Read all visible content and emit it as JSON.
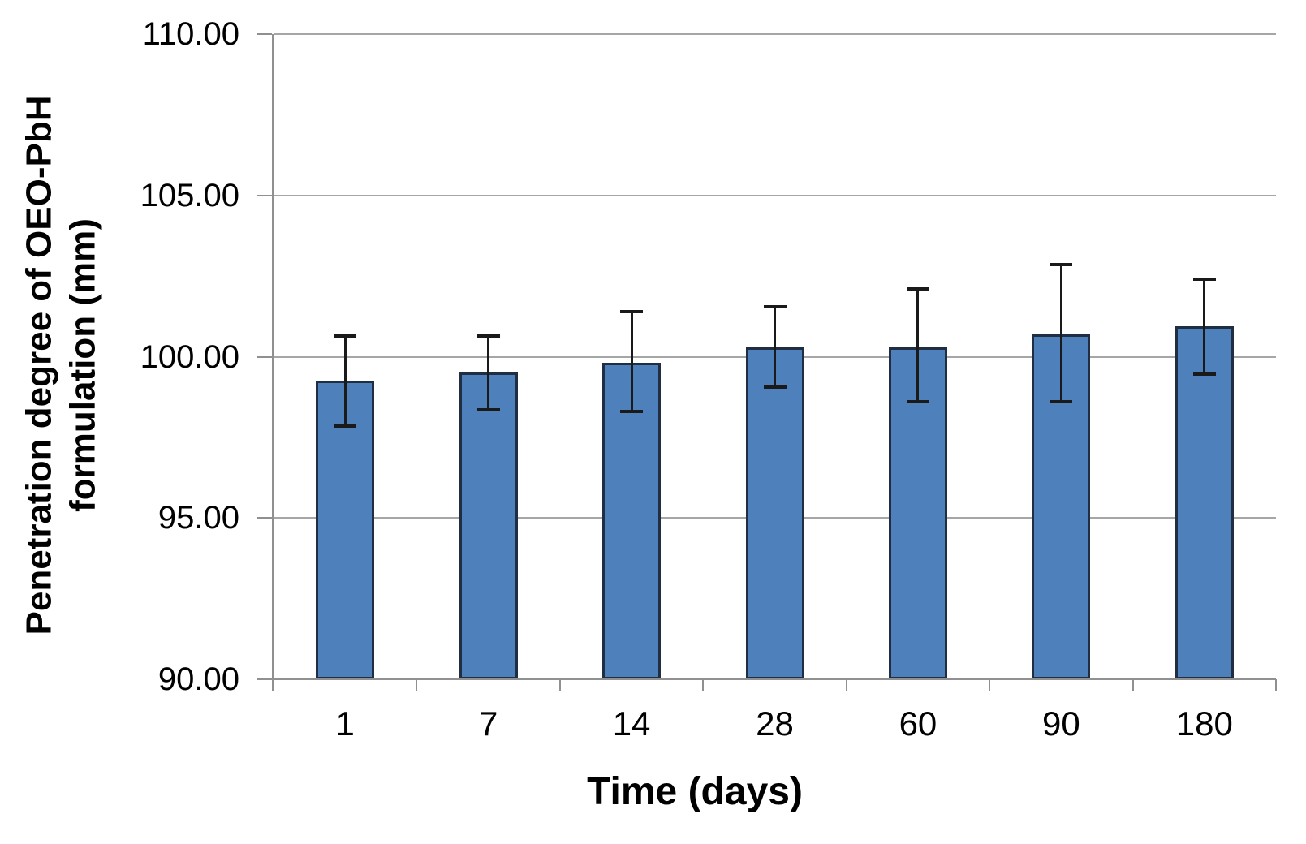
{
  "figure": {
    "background": "#FFFFFF"
  },
  "chart_data": {
    "type": "bar",
    "title": "",
    "xlabel": "Time (days)",
    "ylabel": "Penetration degree of OEO-PbH formulation (mm)",
    "ylabel_lines": [
      "Penetration degree of OEO-PbH",
      "formulation (mm)"
    ],
    "categories": [
      "1",
      "7",
      "14",
      "28",
      "60",
      "90",
      "180"
    ],
    "series": [
      {
        "name": "OEO-PbH formulation penetration degree",
        "values": [
          99.25,
          99.5,
          99.8,
          100.3,
          100.3,
          100.7,
          100.95
        ],
        "error_up": [
          1.4,
          1.15,
          1.6,
          1.25,
          1.8,
          2.15,
          1.45
        ],
        "error_down": [
          1.4,
          1.15,
          1.5,
          1.25,
          1.7,
          2.1,
          1.5
        ]
      }
    ],
    "ylim": [
      90,
      110
    ],
    "ytick_step": 5,
    "ytick_labels": [
      "90.00",
      "95.00",
      "100.00",
      "105.00",
      "110.00"
    ],
    "grid": true,
    "legend": "none",
    "colors": {
      "bar_fill": "#4E80BC",
      "bar_border": "#1F2E40",
      "error_bar": "#1A1A1A",
      "gridline": "#A6A6A6",
      "axis_line": "#909090",
      "text": "#000000"
    }
  }
}
